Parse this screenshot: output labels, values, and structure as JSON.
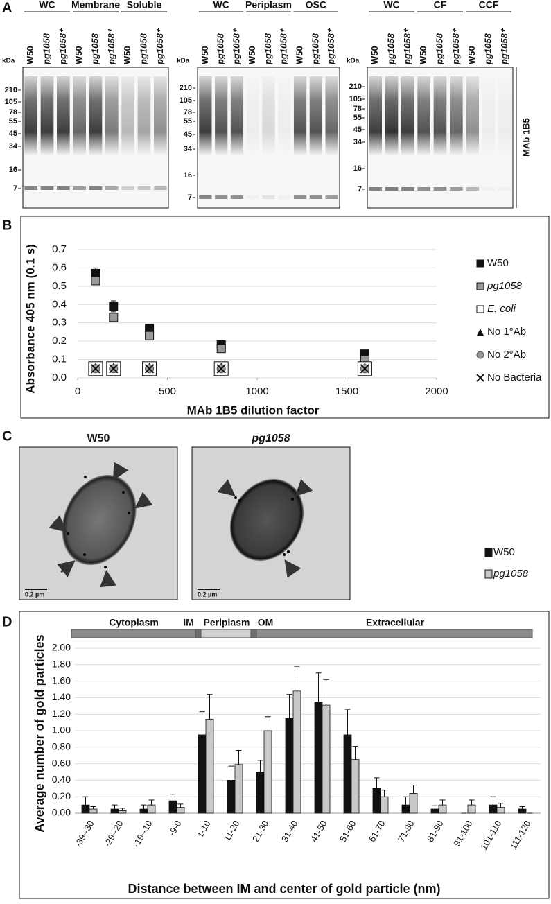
{
  "panel_labels": {
    "a": "A",
    "b": "B",
    "c": "C",
    "d": "D"
  },
  "blots": {
    "kda_label": "kDa",
    "antibody": "MAb 1B5",
    "panels": [
      {
        "groups": [
          "WC",
          "Membrane",
          "Soluble"
        ],
        "lanes": [
          "W50",
          "pg1058",
          "pg1058⁺",
          "W50",
          "pg1058",
          "pg1058⁺",
          "W50",
          "pg1058",
          "pg1058⁺"
        ],
        "markers": [
          210,
          105,
          78,
          55,
          45,
          34,
          16,
          7
        ]
      },
      {
        "groups": [
          "WC",
          "Periplasm",
          "OSC"
        ],
        "lanes": [
          "W50",
          "pg1058",
          "pg1058⁺",
          "W50",
          "pg1058",
          "pg1058⁺",
          "W50",
          "pg1058",
          "pg1058⁺"
        ],
        "markers": [
          210,
          105,
          78,
          55,
          45,
          34,
          16,
          7
        ]
      },
      {
        "groups": [
          "WC",
          "CF",
          "CCF"
        ],
        "lanes": [
          "W50",
          "pg1058",
          "pg1058⁺",
          "W50",
          "pg1058",
          "pg1058⁺",
          "W50",
          "pg1058",
          "pg1058⁺"
        ],
        "markers": [
          210,
          105,
          78,
          55,
          45,
          34,
          16,
          7
        ]
      }
    ]
  },
  "chart_data": [
    {
      "type": "scatter",
      "x_label": "MAb 1B5 dilution factor",
      "y_label": "Absorbance 405 nm (0.1 s)",
      "x": [
        100,
        200,
        400,
        800,
        1600
      ],
      "xlim": [
        0,
        2000
      ],
      "xticks": [
        0,
        500,
        1000,
        1500,
        2000
      ],
      "ylim": [
        0,
        0.7
      ],
      "yticks": [
        {
          "value": 0,
          "label": "0.0"
        },
        0.1,
        0.2,
        0.3,
        0.4,
        0.5,
        0.6,
        0.7
      ],
      "grid": true,
      "legend": "right",
      "series": [
        {
          "name": "W50",
          "color": "#111111",
          "marker": "square",
          "values": [
            0.57,
            0.39,
            0.27,
            0.18,
            0.13
          ],
          "errors": [
            0.03,
            0.03,
            0.01,
            0.01,
            0.01
          ]
        },
        {
          "name": "pg1058",
          "color": "#999999",
          "marker": "square",
          "values": [
            0.53,
            0.33,
            0.23,
            0.16,
            0.1
          ],
          "errors": [
            0.02,
            0.01,
            0.01,
            0.01,
            0.01
          ]
        },
        {
          "name": "E. coli",
          "color": "#ffffff",
          "marker": "square",
          "values": [
            0.05,
            0.05,
            0.05,
            0.05,
            0.05
          ]
        },
        {
          "name": "No 1°Ab",
          "color": "#111111",
          "marker": "triangle",
          "values": [
            0.06,
            0.06,
            0.06,
            0.06,
            0.06
          ]
        },
        {
          "name": "No 2°Ab",
          "color": "#999999",
          "marker": "circle",
          "values": [
            0.05,
            0.05,
            0.05,
            0.05,
            0.05
          ]
        },
        {
          "name": "No Bacteria",
          "color": "#111111",
          "marker": "x",
          "values": [
            0.05,
            0.05,
            0.05,
            0.05,
            0.05
          ]
        }
      ]
    },
    {
      "type": "bar",
      "x_label": "Distance between IM and center of gold particle (nm)",
      "y_label": "Average number of gold particles",
      "regions": [
        "Cytoplasm",
        "IM",
        "Periplasm",
        "OM",
        "Extracellular"
      ],
      "categories": [
        "-39--30",
        "-29--20",
        "-19--10",
        "-9-0",
        "1-10",
        "11-20",
        "21-30",
        "31-40",
        "41-50",
        "51-60",
        "61-70",
        "71-80",
        "81-90",
        "91-100",
        "101-110",
        "111-120"
      ],
      "ylim": [
        0,
        2
      ],
      "yticks": [
        {
          "value": 0,
          "label": "0.00"
        },
        {
          "value": 0.2,
          "label": "0.20"
        },
        {
          "value": 0.4,
          "label": "0.40"
        },
        {
          "value": 0.6,
          "label": "0.60"
        },
        {
          "value": 0.8,
          "label": "0.80"
        },
        {
          "value": 1,
          "label": "1.00"
        },
        {
          "value": 1.2,
          "label": "1.20"
        },
        {
          "value": 1.4,
          "label": "1.40"
        },
        {
          "value": 1.6,
          "label": "1.60"
        },
        {
          "value": 1.8,
          "label": "1.80"
        },
        {
          "value": 2,
          "label": "2.00"
        }
      ],
      "grid": true,
      "legend": "right",
      "series": [
        {
          "name": "W50",
          "color": "#111111",
          "values": [
            0.1,
            0.05,
            0.05,
            0.15,
            0.95,
            0.4,
            0.5,
            1.15,
            1.35,
            0.95,
            0.3,
            0.1,
            0.05,
            0,
            0.1,
            0.05
          ],
          "errors": [
            0.1,
            0.05,
            0.05,
            0.08,
            0.28,
            0.17,
            0.14,
            0.29,
            0.35,
            0.31,
            0.13,
            0.1,
            0.04,
            0,
            0.1,
            0.03
          ]
        },
        {
          "name": "pg1058",
          "color": "#c8c8c8",
          "values": [
            0.05,
            0.03,
            0.1,
            0.07,
            1.14,
            0.59,
            1.0,
            1.48,
            1.31,
            0.65,
            0.2,
            0.24,
            0.1,
            0.1,
            0.07,
            0
          ],
          "errors": [
            0.03,
            0.03,
            0.06,
            0.04,
            0.3,
            0.17,
            0.17,
            0.3,
            0.31,
            0.16,
            0.08,
            0.1,
            0.06,
            0.06,
            0.05,
            0
          ]
        }
      ]
    }
  ],
  "micrographs": {
    "panels": [
      {
        "title": "W50",
        "scale_bar": "0.2 µm"
      },
      {
        "title": "pg1058",
        "scale_bar": "0.2 µm"
      }
    ]
  }
}
